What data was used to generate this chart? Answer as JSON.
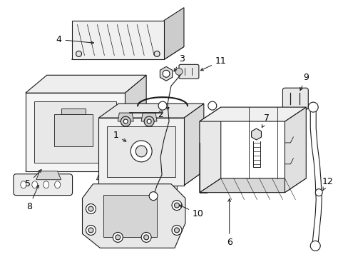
{
  "background_color": "#ffffff",
  "line_color": "#1a1a1a",
  "label_color": "#000000",
  "label_fontsize": 9,
  "arrow_color": "#000000",
  "fig_width": 4.89,
  "fig_height": 3.6,
  "dpi": 100
}
